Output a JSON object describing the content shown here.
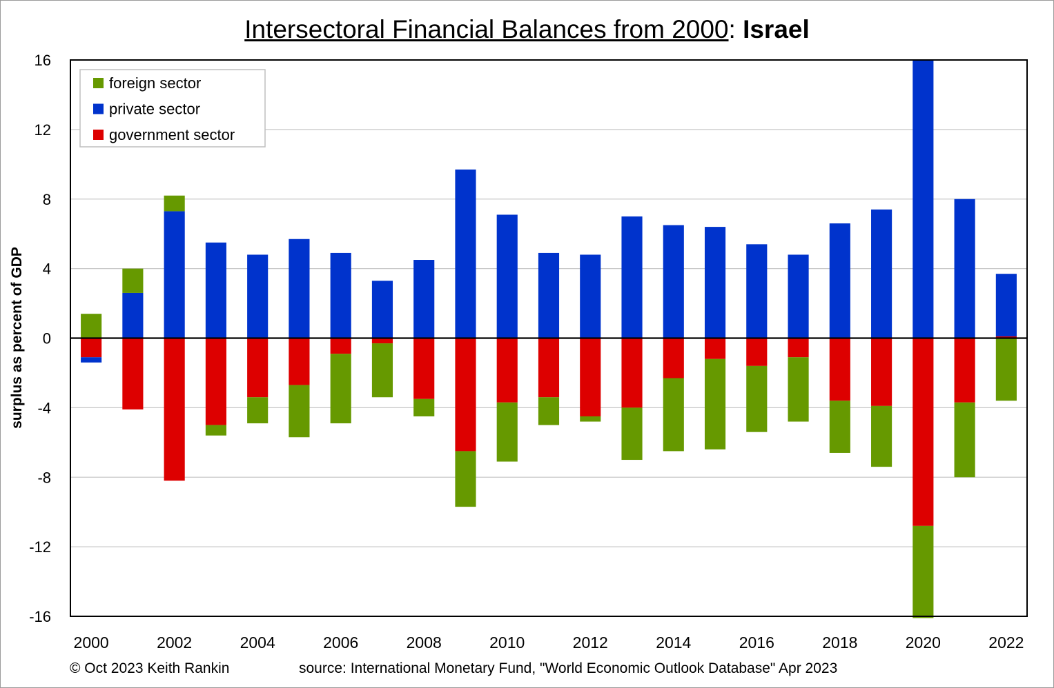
{
  "title_main": "Intersectoral Financial Balances from 2000",
  "title_sep": ": ",
  "title_country": "Israel",
  "copyright": "© Oct 2023 Keith Rankin",
  "source": "source:  International Monetary Fund, \"World Economic Outlook Database\" Apr 2023",
  "colors": {
    "foreign": "#669900",
    "private": "#0033CC",
    "government": "#DD0000"
  },
  "chart_data": {
    "type": "bar",
    "stacked": true,
    "title": "Intersectoral Financial Balances from 2000: Israel",
    "ylabel": "surplus as percent of GDP",
    "xlabel": "",
    "ylim": [
      -16,
      16
    ],
    "yticks": [
      16,
      12,
      8,
      4,
      0,
      -4,
      -8,
      -12,
      -16
    ],
    "grid": true,
    "legend_position": "top-left",
    "categories": [
      "2000",
      "2001",
      "2002",
      "2003",
      "2004",
      "2005",
      "2006",
      "2007",
      "2008",
      "2009",
      "2010",
      "2011",
      "2012",
      "2013",
      "2014",
      "2015",
      "2016",
      "2017",
      "2018",
      "2019",
      "2020",
      "2021",
      "2022"
    ],
    "xtick_labels": [
      "2000",
      "2002",
      "2004",
      "2006",
      "2008",
      "2010",
      "2012",
      "2014",
      "2016",
      "2018",
      "2020",
      "2022"
    ],
    "series": [
      {
        "name": "foreign sector",
        "key": "foreign",
        "values": [
          1.4,
          1.4,
          0.9,
          -0.6,
          -1.5,
          -3.0,
          -4.0,
          -3.1,
          -1.0,
          -3.2,
          -3.4,
          -1.6,
          -0.3,
          -3.0,
          -4.2,
          -5.2,
          -3.8,
          -3.7,
          -3.0,
          -3.5,
          -5.3,
          -4.3,
          -3.6
        ]
      },
      {
        "name": "private sector",
        "key": "private",
        "values": [
          -0.3,
          2.6,
          7.3,
          5.5,
          4.8,
          5.7,
          4.9,
          3.3,
          4.5,
          9.7,
          7.1,
          4.9,
          4.8,
          7.0,
          6.5,
          6.4,
          5.4,
          4.8,
          6.6,
          7.4,
          16.0,
          8.0,
          3.6
        ]
      },
      {
        "name": "government sector",
        "key": "government",
        "values": [
          -1.1,
          -4.1,
          -8.2,
          -5.0,
          -3.4,
          -2.7,
          -0.9,
          -0.3,
          -3.5,
          -6.5,
          -3.7,
          -3.4,
          -4.5,
          -4.0,
          -2.3,
          -1.2,
          -1.6,
          -1.1,
          -3.6,
          -3.9,
          -10.8,
          -3.7,
          0.1
        ]
      }
    ]
  }
}
